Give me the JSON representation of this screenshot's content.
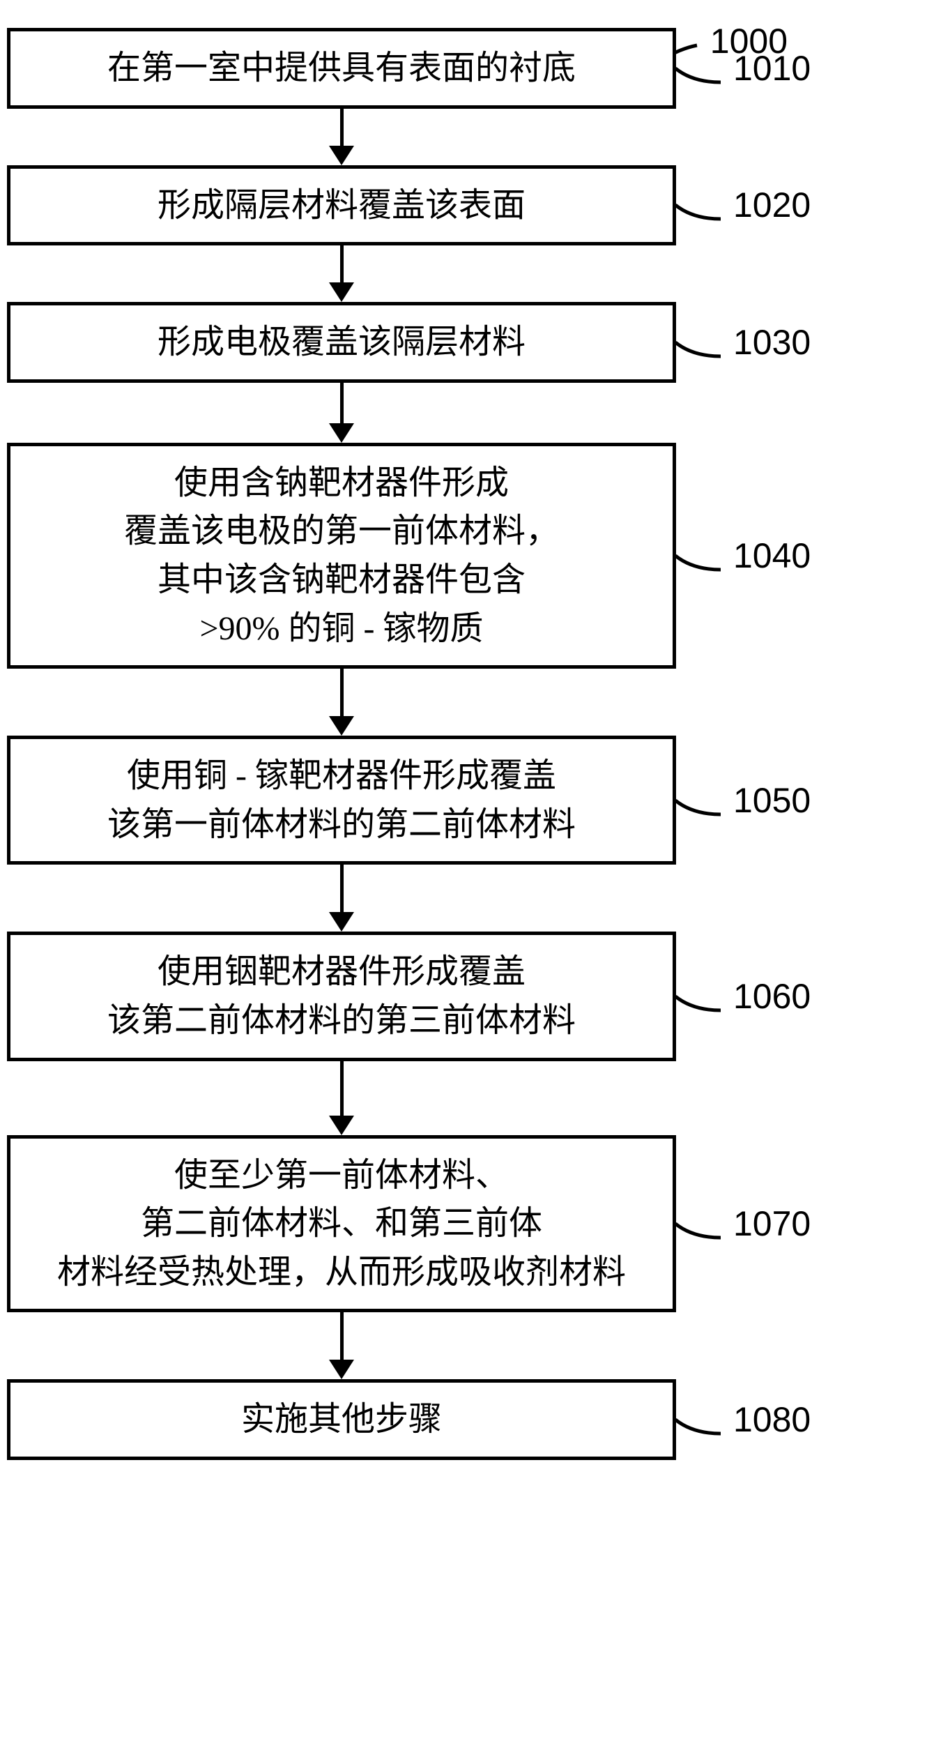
{
  "figure": {
    "id": "1000",
    "label_fontsize": 50,
    "step_fontsize": 48,
    "step_label_fontsize": 50,
    "box_border_color": "#000000",
    "box_border_width": 5,
    "background_color": "#ffffff",
    "text_color": "#000000",
    "arrow_line_width": 5,
    "arrowhead_size": 28,
    "steps": [
      {
        "id": "1010",
        "lines": [
          "在第一室中提供具有表面的衬底"
        ],
        "conn_h": 55
      },
      {
        "id": "1020",
        "lines": [
          "形成隔层材料覆盖该表面"
        ],
        "conn_h": 55
      },
      {
        "id": "1030",
        "lines": [
          "形成电极覆盖该隔层材料"
        ],
        "conn_h": 60
      },
      {
        "id": "1040",
        "lines": [
          "使用含钠靶材器件形成",
          "覆盖该电极的第一前体材料，",
          "其中该含钠靶材器件包含",
          ">90% 的铜 - 镓物质"
        ],
        "conn_h": 70
      },
      {
        "id": "1050",
        "lines": [
          "使用铜 - 镓靶材器件形成覆盖",
          "该第一前体材料的第二前体材料"
        ],
        "conn_h": 70
      },
      {
        "id": "1060",
        "lines": [
          "使用铟靶材器件形成覆盖",
          "该第二前体材料的第三前体材料"
        ],
        "conn_h": 80
      },
      {
        "id": "1070",
        "lines": [
          "使至少第一前体材料、",
          "第二前体材料、和第三前体",
          "材料经受热处理，从而形成吸收剂材料"
        ],
        "conn_h": 70
      },
      {
        "id": "1080",
        "lines": [
          "实施其他步骤"
        ],
        "conn_h": 0
      }
    ]
  }
}
